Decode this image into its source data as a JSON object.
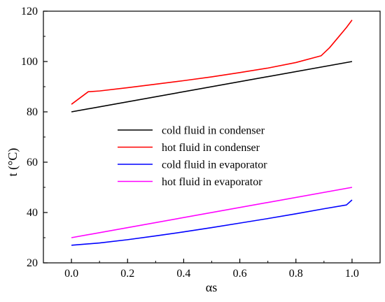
{
  "chart_data": {
    "type": "line",
    "xlabel": "αs",
    "ylabel": "t (°C)",
    "xlim": [
      -0.1,
      1.1
    ],
    "ylim": [
      20,
      120
    ],
    "x_ticks": [
      0.0,
      0.2,
      0.4,
      0.6,
      0.8,
      1.0
    ],
    "x_tick_labels": [
      "0.0",
      "0.2",
      "0.4",
      "0.6",
      "0.8",
      "1.0"
    ],
    "y_ticks": [
      20,
      40,
      60,
      80,
      100,
      120
    ],
    "y_tick_labels": [
      "20",
      "40",
      "60",
      "80",
      "100",
      "120"
    ],
    "legend_position": "center",
    "grid": false,
    "series": [
      {
        "name": "cold fluid in condenser",
        "color": "#000000",
        "x": [
          0.0,
          1.0
        ],
        "y": [
          80.0,
          100.0
        ]
      },
      {
        "name": "hot fluid in condenser",
        "color": "#ff0000",
        "x": [
          0.0,
          0.03,
          0.06,
          0.1,
          0.2,
          0.3,
          0.4,
          0.5,
          0.6,
          0.7,
          0.8,
          0.89,
          0.92,
          0.95,
          0.98,
          1.0
        ],
        "y": [
          83.0,
          85.5,
          88.0,
          88.3,
          89.6,
          91.0,
          92.4,
          93.9,
          95.6,
          97.4,
          99.6,
          102.3,
          105.5,
          109.5,
          113.5,
          116.5
        ]
      },
      {
        "name": "cold fluid in evaporator",
        "color": "#0000ff",
        "x": [
          0.0,
          0.1,
          0.2,
          0.3,
          0.4,
          0.5,
          0.6,
          0.7,
          0.8,
          0.9,
          0.98,
          1.0
        ],
        "y": [
          27.0,
          27.9,
          29.2,
          30.7,
          32.3,
          34.0,
          35.8,
          37.6,
          39.5,
          41.5,
          43.0,
          45.0
        ]
      },
      {
        "name": "hot fluid in evaporator",
        "color": "#ff00ff",
        "x": [
          0.0,
          1.0
        ],
        "y": [
          30.0,
          50.0
        ]
      }
    ]
  }
}
